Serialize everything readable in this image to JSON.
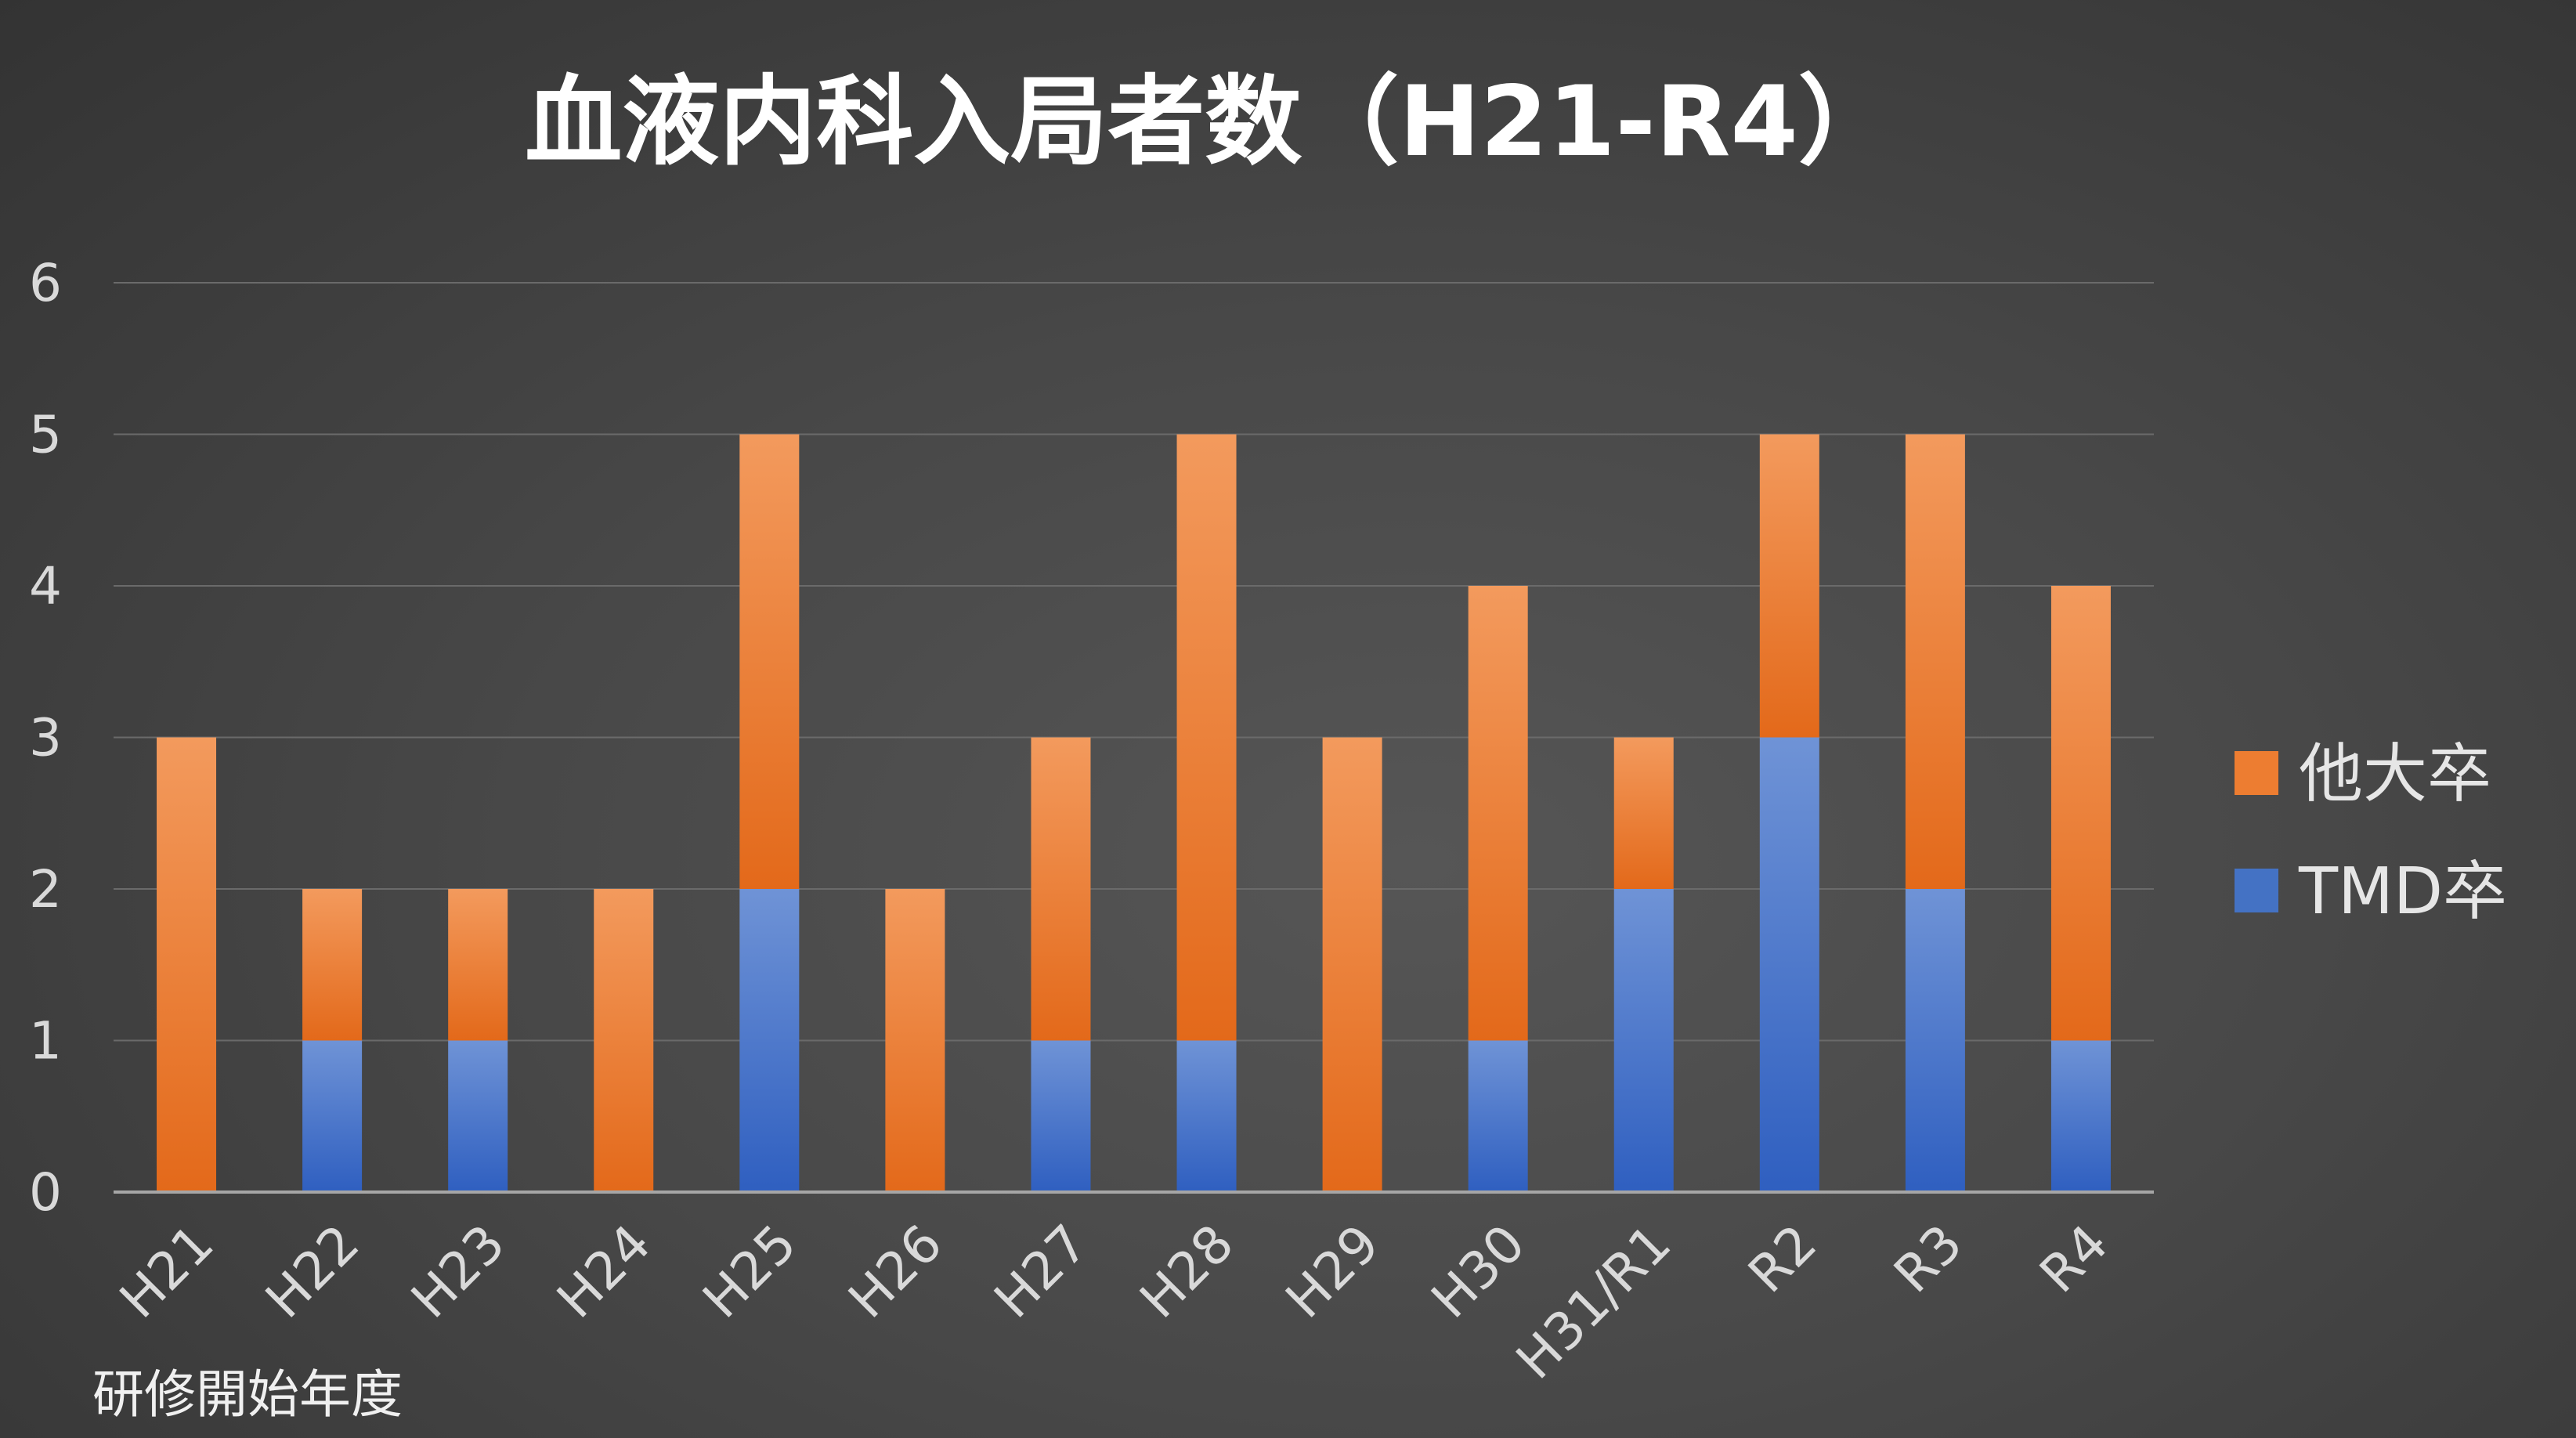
{
  "chart_data": {
    "type": "bar",
    "stacked": true,
    "title": "血液内科入局者数（H21-R4）",
    "xlabel": "研修開始年度",
    "ylabel": "",
    "categories": [
      "H21",
      "H22",
      "H23",
      "H24",
      "H25",
      "H26",
      "H27",
      "H28",
      "H29",
      "H30",
      "H31/R1",
      "R2",
      "R3",
      "R4"
    ],
    "series": [
      {
        "name": "TMD卒",
        "color": "#4472c4",
        "values": [
          0,
          1,
          1,
          0,
          2,
          0,
          1,
          1,
          0,
          1,
          2,
          3,
          2,
          1
        ]
      },
      {
        "name": "他大卒",
        "color": "#ed7d31",
        "values": [
          3,
          1,
          1,
          2,
          3,
          2,
          2,
          4,
          3,
          3,
          1,
          2,
          3,
          3
        ]
      }
    ],
    "ylim": [
      0,
      6
    ],
    "yticks": [
      0,
      1,
      2,
      3,
      4,
      5,
      6
    ],
    "grid": true,
    "legend": {
      "placement": "right",
      "order": [
        "他大卒",
        "TMD卒"
      ]
    },
    "colors": {
      "background": "#484848",
      "gridline": "#6a6a6a",
      "axis": "#a6a6a6"
    }
  }
}
